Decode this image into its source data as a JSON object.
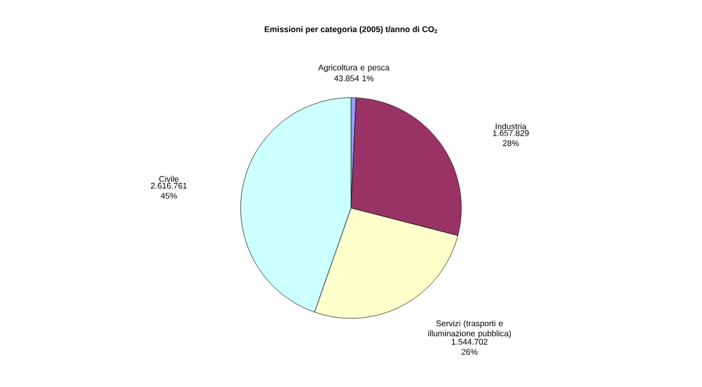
{
  "chart_data": {
    "type": "pie",
    "title": "Emissioni  per categoria (2005) t/anno di CO$_{2}$",
    "categories": [
      "Agricoltura e pesca",
      "Industria",
      "Servizi (trasporti e illuminazione pubblica)",
      "Civile"
    ],
    "values": [
      43854,
      1657829,
      1544702,
      2616761
    ],
    "value_labels": [
      "43.854 1%",
      "1.657.829 28%",
      "1.544.702 26%",
      "2.616.761 45%"
    ],
    "colors": [
      "#9999ff",
      "#993366",
      "#ffffcc",
      "#ccffff"
    ]
  }
}
